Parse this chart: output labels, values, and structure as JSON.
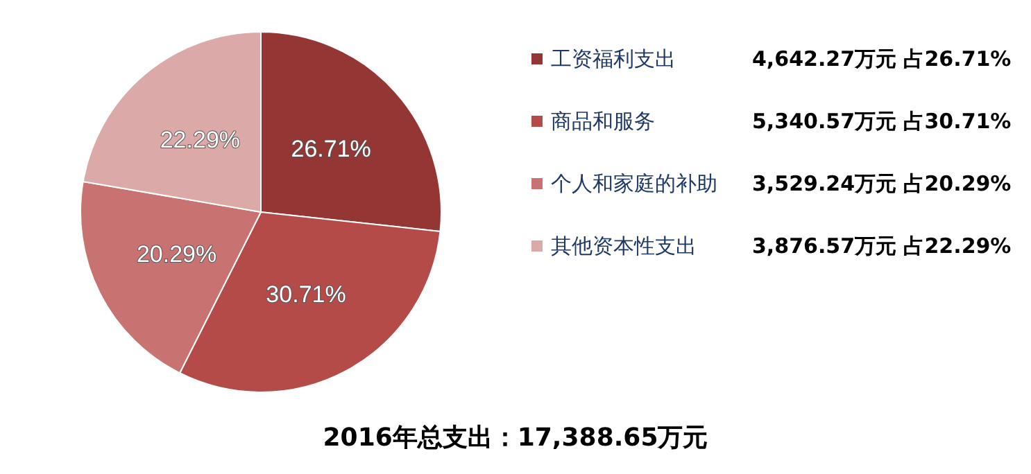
{
  "chart_data": {
    "type": "pie",
    "title": "2016年总支出：17,388.65万元",
    "categories": [
      "工资福利支出",
      "商品和服务",
      "个人和家庭的补助",
      "其他资本性支出"
    ],
    "values": [
      26.71,
      30.71,
      20.29,
      22.29
    ],
    "value_labels": [
      "26.71%",
      "30.71%",
      "20.29%",
      "22.29%"
    ],
    "colors": [
      "#943634",
      "#b54b48",
      "#c87272",
      "#dba9a8"
    ],
    "annotations": [
      "4,642.27万元 占26.71%",
      "5,340.57万元 占30.71%",
      "3,529.24万元 占20.29%",
      "3,876.57万元 占22.29%"
    ],
    "legend": "right"
  }
}
